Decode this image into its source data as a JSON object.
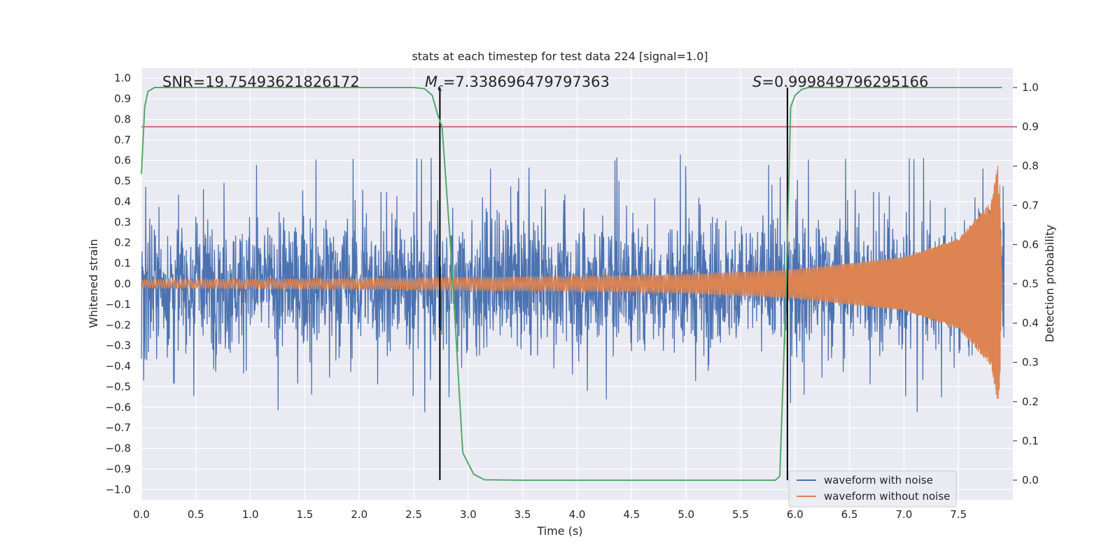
{
  "chart_data": {
    "type": "line",
    "title": "stats at each timestep for test data 224 [signal=1.0]",
    "xlabel": "Time (s)",
    "ylabel_left": "Whitened strain",
    "ylabel_right": "Detection probability",
    "xlim": [
      0.0,
      8.0
    ],
    "ylim_left": [
      -1.05,
      1.05
    ],
    "ylim_right": [
      -0.05,
      1.05
    ],
    "x_ticks": [
      "0.0",
      "0.5",
      "1.0",
      "1.5",
      "2.0",
      "2.5",
      "3.0",
      "3.5",
      "4.0",
      "4.5",
      "5.0",
      "5.5",
      "6.0",
      "6.5",
      "7.0",
      "7.5"
    ],
    "y_left_ticks": [
      "1.0",
      "0.9",
      "0.8",
      "0.7",
      "0.6",
      "0.5",
      "0.4",
      "0.3",
      "0.2",
      "0.1",
      "0.0",
      "−0.1",
      "−0.2",
      "−0.3",
      "−0.4",
      "−0.5",
      "−0.6",
      "−0.7",
      "−0.8",
      "−0.9",
      "−1.0"
    ],
    "y_right_ticks": [
      "1.0",
      "0.9",
      "0.8",
      "0.7",
      "0.6",
      "0.5",
      "0.4",
      "0.3",
      "0.2",
      "0.1",
      "0.0"
    ],
    "grid": true,
    "legend_position": "lower-right",
    "annotations": {
      "snr": "SNR=19.75493621826172",
      "mc_symbol": "M",
      "mc_sub": "c",
      "mc_value": "=7.338696479797363",
      "s_symbol": "S",
      "s_value": "=0.999849796295166"
    },
    "series": [
      {
        "name": "waveform with noise",
        "color": "#4c72b0",
        "axis": "left",
        "noise_envelope": {
          "typical_max": 0.6,
          "extreme_max": 0.9,
          "extreme_min": -0.93
        }
      },
      {
        "name": "waveform without noise",
        "color": "#dd8452",
        "axis": "left",
        "chirp_amplitude": {
          "t": [
            0.0,
            2.0,
            4.0,
            5.0,
            6.0,
            7.0,
            7.5,
            7.8,
            7.86,
            7.88,
            7.9,
            8.0
          ],
          "amp": [
            0.02,
            0.025,
            0.035,
            0.045,
            0.07,
            0.13,
            0.22,
            0.4,
            0.58,
            0.5,
            0.02,
            0.0
          ]
        }
      },
      {
        "name": "Detection probability",
        "color": "#55a868",
        "axis": "right",
        "x": [
          0.0,
          0.03,
          0.06,
          0.12,
          0.2,
          1.0,
          2.0,
          2.5,
          2.6,
          2.67,
          2.72,
          2.76,
          2.85,
          2.95,
          3.05,
          3.15,
          3.5,
          4.0,
          4.5,
          5.0,
          5.5,
          5.7,
          5.82,
          5.86,
          5.92,
          5.96,
          6.0,
          6.06,
          6.12,
          6.2,
          7.0,
          7.9
        ],
        "y": [
          0.78,
          0.95,
          0.99,
          1.0,
          1.0,
          1.0,
          1.0,
          1.0,
          0.997,
          0.98,
          0.93,
          0.9,
          0.55,
          0.07,
          0.015,
          0.001,
          0.0,
          0.0,
          0.0,
          0.0,
          0.0,
          0.0,
          0.0,
          0.01,
          0.5,
          0.95,
          0.98,
          0.995,
          1.0,
          1.0,
          1.0,
          1.0
        ]
      }
    ],
    "threshold": {
      "value": 0.9,
      "axis": "right",
      "color": "#c44e52"
    },
    "vlines": {
      "x": [
        2.74,
        5.93
      ],
      "color": "#000000"
    }
  }
}
